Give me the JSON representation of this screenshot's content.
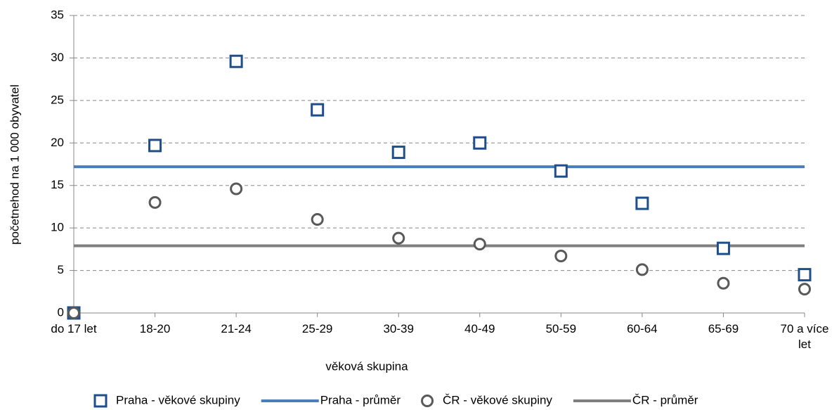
{
  "chart_data": {
    "type": "line",
    "x_label": "věková skupina",
    "y_label": "početnehod na 1 000 obyvatel",
    "categories": [
      "do 17 let",
      "18-20",
      "21-24",
      "25-29",
      "30-39",
      "40-49",
      "50-59",
      "60-64",
      "65-69",
      "70 a více let"
    ],
    "series": [
      {
        "name": "Praha - věkové skupiny",
        "color": "#1f4e8c",
        "marker": "square",
        "values": [
          0,
          19.7,
          29.6,
          23.9,
          18.9,
          20.0,
          16.7,
          12.9,
          7.6,
          4.5
        ]
      },
      {
        "name": "Praha - průměr",
        "color": "#4a7ebb",
        "marker": "line",
        "value": 17.2
      },
      {
        "name": "ČR - věkové skupiny",
        "color": "#595959",
        "marker": "circle",
        "values": [
          0,
          13.0,
          14.6,
          11.0,
          8.8,
          8.1,
          6.7,
          5.1,
          3.5,
          2.8
        ]
      },
      {
        "name": "ČR - průměr",
        "color": "#7f7f7f",
        "marker": "line",
        "value": 7.9
      }
    ],
    "ylim": [
      0,
      35
    ],
    "yticks": [
      0,
      5,
      10,
      15,
      20,
      25,
      30,
      35
    ],
    "grid": true
  }
}
